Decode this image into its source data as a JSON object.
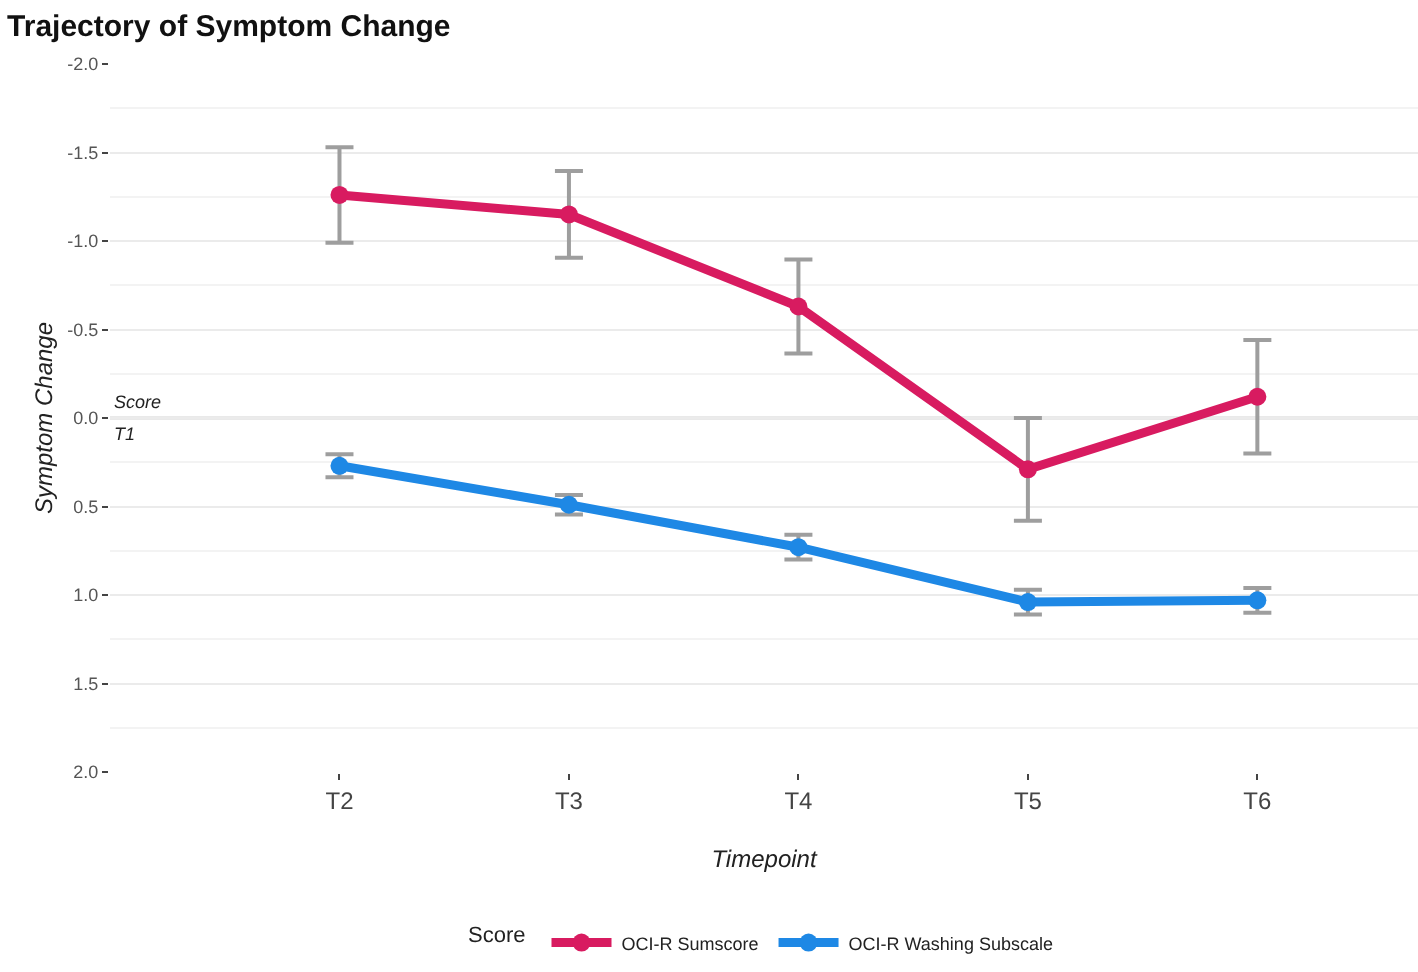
{
  "chart_data": {
    "type": "line",
    "title": "Trajectory of Symptom Change",
    "xlabel": "Timepoint",
    "ylabel": "Symptom Change",
    "legend_title": "Score",
    "categories": [
      "T2",
      "T3",
      "T4",
      "T5",
      "T6"
    ],
    "series": [
      {
        "name": "OCI-R Sumscore",
        "color": "#d81b60",
        "values": [
          -1.26,
          -1.15,
          -0.63,
          0.29,
          -0.12
        ],
        "errors": [
          0.27,
          0.245,
          0.265,
          0.29,
          0.32
        ]
      },
      {
        "name": "OCI-R Washing Subscale",
        "color": "#1e88e5",
        "values": [
          0.27,
          0.49,
          0.73,
          1.04,
          1.03
        ],
        "errors": [
          0.065,
          0.055,
          0.07,
          0.07,
          0.07
        ]
      }
    ],
    "ylim": [
      2,
      -2
    ],
    "yticks": [
      {
        "value": -2,
        "label": "-2.0"
      },
      {
        "value": -1.5,
        "label": "-1.5"
      },
      {
        "value": -1,
        "label": "-1.0"
      },
      {
        "value": -0.5,
        "label": "-0.5"
      },
      {
        "value": 0,
        "label": "0.0"
      },
      {
        "value": 0.5,
        "label": "0.5"
      },
      {
        "value": 1,
        "label": "1.0"
      },
      {
        "value": 1.5,
        "label": "1.5"
      },
      {
        "value": 2,
        "label": "2.0"
      }
    ],
    "ref_lines": [
      {
        "axis": "y",
        "value": 0,
        "label": "Score\nT1",
        "color": "#a8a8a8"
      }
    ],
    "grid": "y",
    "legend": "bottom",
    "marker": "circle",
    "line_style": "solid"
  }
}
